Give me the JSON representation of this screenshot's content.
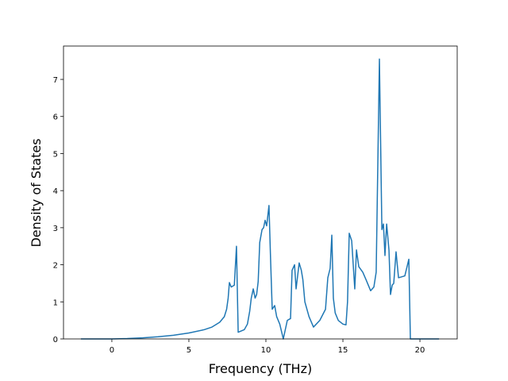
{
  "chart_data": {
    "type": "line",
    "xlabel": "Frequency (THz)",
    "ylabel": "Density of States",
    "x": [
      -2.01,
      0,
      1,
      2,
      3,
      4,
      5,
      6,
      6.5,
      7,
      7.3,
      7.45,
      7.55,
      7.63,
      7.75,
      7.95,
      8.09,
      8.2,
      8.6,
      8.8,
      8.95,
      9.05,
      9.18,
      9.3,
      9.4,
      9.5,
      9.6,
      9.75,
      9.85,
      9.95,
      10.05,
      10.2,
      10.3,
      10.41,
      10.57,
      10.7,
      10.9,
      11.13,
      11.39,
      11.6,
      11.7,
      11.86,
      11.96,
      12.16,
      12.3,
      12.4,
      12.53,
      12.8,
      13.09,
      13.5,
      13.87,
      14.02,
      14.17,
      14.28,
      14.38,
      14.5,
      14.7,
      15.0,
      15.2,
      15.3,
      15.41,
      15.57,
      15.77,
      15.88,
      16.03,
      16.29,
      16.5,
      16.8,
      17.01,
      17.16,
      17.37,
      17.53,
      17.63,
      17.73,
      17.84,
      17.99,
      18.09,
      18.2,
      18.3,
      18.45,
      18.61,
      19.02,
      19.28,
      19.38,
      21.24
    ],
    "series": [
      {
        "color": "#1f77b4",
        "values": [
          0,
          0,
          0.01,
          0.03,
          0.06,
          0.1,
          0.16,
          0.25,
          0.32,
          0.45,
          0.6,
          0.8,
          1.1,
          1.52,
          1.4,
          1.45,
          2.5,
          0.18,
          0.25,
          0.4,
          0.75,
          1.1,
          1.35,
          1.1,
          1.2,
          1.55,
          2.6,
          2.95,
          3.0,
          3.2,
          3.05,
          3.6,
          2.2,
          0.8,
          0.9,
          0.6,
          0.4,
          0,
          0.5,
          0.55,
          1.85,
          2.0,
          1.35,
          2.05,
          1.85,
          1.6,
          1.0,
          0.6,
          0.32,
          0.5,
          0.8,
          1.65,
          1.9,
          2.8,
          1.1,
          0.7,
          0.5,
          0.4,
          0.38,
          1.0,
          2.85,
          2.65,
          1.35,
          2.4,
          1.95,
          1.8,
          1.6,
          1.3,
          1.4,
          1.8,
          7.55,
          2.95,
          3.1,
          2.25,
          3.1,
          2.4,
          1.2,
          1.45,
          1.5,
          2.35,
          1.65,
          1.7,
          2.15,
          0,
          0
        ]
      }
    ],
    "xlim": [
      -3.14,
      22.42
    ],
    "ylim": [
      0,
      7.9
    ],
    "xticks": [
      0,
      5,
      10,
      15,
      20
    ],
    "yticks": [
      0,
      1,
      2,
      3,
      4,
      5,
      6,
      7
    ]
  }
}
